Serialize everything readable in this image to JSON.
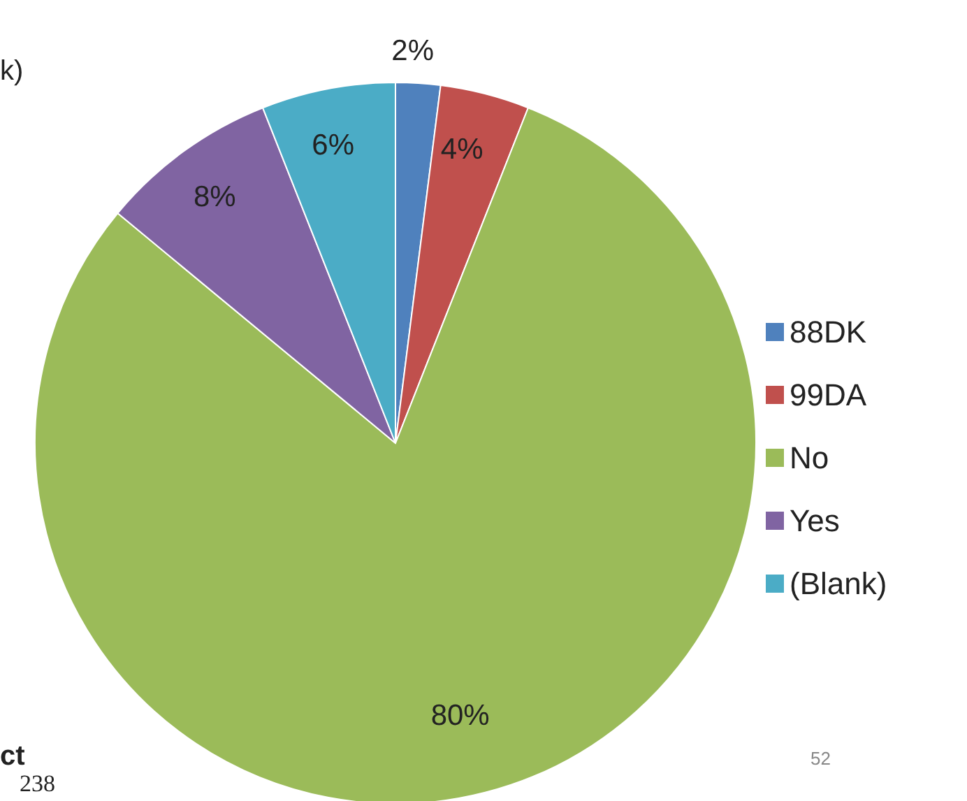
{
  "chart_data": {
    "type": "pie",
    "categories": [
      "88DK",
      "99DA",
      "No",
      "Yes",
      "(Blank)"
    ],
    "values": [
      2,
      4,
      80,
      8,
      6
    ],
    "colors": [
      "#4f81bd",
      "#c0504d",
      "#9bbb59",
      "#8064a2",
      "#4bacc6"
    ],
    "value_labels": [
      "2%",
      "4%",
      "80%",
      "8%",
      "6%"
    ],
    "legend": "right",
    "annotations": [
      "k)",
      "ct",
      "238",
      "52"
    ]
  }
}
